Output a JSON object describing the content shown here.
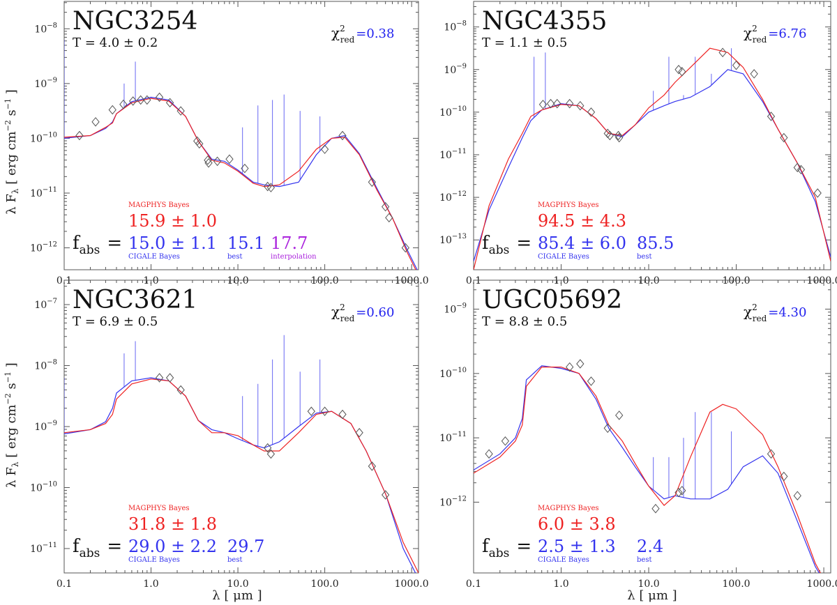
{
  "figure": {
    "xlabel": "λ [ μm ]",
    "ylabel": "λ F",
    "ylabel_sub": "λ",
    "ylabel_unit": "[ erg cm",
    "colors": {
      "magphys": "#ee2222",
      "cigale": "#3333ee",
      "interp": "#aa22dd",
      "obs": "#555555"
    },
    "x_ticks": [
      "0.1",
      "1.0",
      "10.0",
      "100.0",
      "1000.0"
    ]
  },
  "chart_data": [
    {
      "type": "line",
      "galaxy": "NGC3254",
      "t_label": "T =  4.0 ± 0.2",
      "chi2_label": "χ",
      "chi2_value": "=0.38",
      "xlim": [
        0.1,
        1200
      ],
      "ylim_log": [
        -12.4,
        -7.5
      ],
      "x_log": true,
      "y_log": true,
      "y_ticks": [
        -12,
        -11,
        -10,
        -9,
        -8
      ],
      "fabs": {
        "label": "f",
        "label_sub": "abs",
        "eq": "=",
        "magphys_title": "MAGPHYS Bayes",
        "magphys": "15.9 ± 1.0",
        "cigale": "15.0 ± 1.1",
        "cigale_title": "CIGALE Bayes",
        "best": "15.1",
        "best_title": "best",
        "interp": "17.7",
        "interp_title": "interpolation"
      },
      "observations": [
        {
          "x": 0.15,
          "y": -9.95
        },
        {
          "x": 0.23,
          "y": -9.7
        },
        {
          "x": 0.36,
          "y": -9.48
        },
        {
          "x": 0.48,
          "y": -9.38
        },
        {
          "x": 0.62,
          "y": -9.32
        },
        {
          "x": 0.76,
          "y": -9.3
        },
        {
          "x": 0.9,
          "y": -9.3
        },
        {
          "x": 1.25,
          "y": -9.25
        },
        {
          "x": 1.65,
          "y": -9.35
        },
        {
          "x": 2.2,
          "y": -9.5
        },
        {
          "x": 3.4,
          "y": -10.05
        },
        {
          "x": 3.6,
          "y": -10.1
        },
        {
          "x": 4.5,
          "y": -10.4
        },
        {
          "x": 4.6,
          "y": -10.45
        },
        {
          "x": 5.8,
          "y": -10.42
        },
        {
          "x": 8.0,
          "y": -10.38
        },
        {
          "x": 12,
          "y": -10.55
        },
        {
          "x": 22,
          "y": -10.88
        },
        {
          "x": 24,
          "y": -10.9
        },
        {
          "x": 100,
          "y": -10.2
        },
        {
          "x": 160,
          "y": -9.95
        },
        {
          "x": 350,
          "y": -10.8
        },
        {
          "x": 500,
          "y": -11.25
        },
        {
          "x": 550,
          "y": -11.45
        },
        {
          "x": 850,
          "y": -12.0
        }
      ],
      "magphys_model": [
        [
          0.1,
          -9.98
        ],
        [
          0.2,
          -9.95
        ],
        [
          0.3,
          -9.8
        ],
        [
          0.36,
          -9.72
        ],
        [
          0.4,
          -9.55
        ],
        [
          0.6,
          -9.35
        ],
        [
          1.0,
          -9.27
        ],
        [
          1.6,
          -9.32
        ],
        [
          2.5,
          -9.6
        ],
        [
          3.5,
          -10.05
        ],
        [
          5,
          -10.4
        ],
        [
          7,
          -10.45
        ],
        [
          10,
          -10.6
        ],
        [
          15,
          -10.82
        ],
        [
          20,
          -10.88
        ],
        [
          30,
          -10.85
        ],
        [
          50,
          -10.6
        ],
        [
          80,
          -10.2
        ],
        [
          120,
          -10.0
        ],
        [
          170,
          -9.98
        ],
        [
          250,
          -10.3
        ],
        [
          400,
          -10.95
        ],
        [
          600,
          -11.45
        ],
        [
          900,
          -12.1
        ],
        [
          1200,
          -12.5
        ]
      ],
      "cigale_model": [
        [
          0.1,
          -10.0
        ],
        [
          0.2,
          -9.95
        ],
        [
          0.3,
          -9.82
        ],
        [
          0.36,
          -9.7
        ],
        [
          0.4,
          -9.55
        ],
        [
          0.6,
          -9.33
        ],
        [
          1.0,
          -9.25
        ],
        [
          1.6,
          -9.3
        ],
        [
          2.5,
          -9.6
        ],
        [
          3.5,
          -10.05
        ],
        [
          5,
          -10.38
        ],
        [
          7,
          -10.42
        ],
        [
          10,
          -10.58
        ],
        [
          15,
          -10.8
        ],
        [
          20,
          -10.85
        ],
        [
          30,
          -10.88
        ],
        [
          50,
          -10.8
        ],
        [
          80,
          -10.3
        ],
        [
          120,
          -10.0
        ],
        [
          170,
          -9.95
        ],
        [
          250,
          -10.28
        ],
        [
          400,
          -10.92
        ],
        [
          600,
          -11.45
        ],
        [
          900,
          -12.05
        ],
        [
          1200,
          -12.45
        ]
      ],
      "emission_lines": [
        [
          0.1,
          -8.2
        ],
        [
          0.49,
          -9.0
        ],
        [
          0.66,
          -8.6
        ],
        [
          11.3,
          -9.8
        ],
        [
          17,
          -9.4
        ],
        [
          25,
          -9.3
        ],
        [
          34,
          -9.2
        ],
        [
          52,
          -9.5
        ],
        [
          88,
          -9.6
        ]
      ]
    },
    {
      "type": "line",
      "galaxy": "NGC4355",
      "t_label": "T =  1.1 ± 0.5",
      "chi2_label": "χ",
      "chi2_value": "=6.76",
      "xlim": [
        0.1,
        1200
      ],
      "ylim_log": [
        -13.7,
        -7.4
      ],
      "x_log": true,
      "y_log": true,
      "y_ticks": [
        -13,
        -12,
        -11,
        -10,
        -9,
        -8
      ],
      "fabs": {
        "label": "f",
        "label_sub": "abs",
        "eq": "=",
        "magphys_title": "MAGPHYS Bayes",
        "magphys": "94.5 ± 4.3",
        "cigale": "85.4 ± 6.0",
        "cigale_title": "CIGALE Bayes",
        "best": "85.5",
        "best_title": "best",
        "interp": "",
        "interp_title": ""
      },
      "observations": [
        {
          "x": 0.62,
          "y": -9.82
        },
        {
          "x": 0.76,
          "y": -9.8
        },
        {
          "x": 0.9,
          "y": -9.8
        },
        {
          "x": 1.25,
          "y": -9.8
        },
        {
          "x": 1.65,
          "y": -9.85
        },
        {
          "x": 2.2,
          "y": -10.0
        },
        {
          "x": 3.4,
          "y": -10.5
        },
        {
          "x": 3.6,
          "y": -10.55
        },
        {
          "x": 4.5,
          "y": -10.55
        },
        {
          "x": 4.6,
          "y": -10.6
        },
        {
          "x": 22,
          "y": -9.0
        },
        {
          "x": 24,
          "y": -9.05
        },
        {
          "x": 70,
          "y": -8.6
        },
        {
          "x": 100,
          "y": -8.9
        },
        {
          "x": 160,
          "y": -9.1
        },
        {
          "x": 250,
          "y": -10.1
        },
        {
          "x": 350,
          "y": -10.6
        },
        {
          "x": 500,
          "y": -11.3
        },
        {
          "x": 550,
          "y": -11.35
        },
        {
          "x": 850,
          "y": -11.9
        }
      ],
      "magphys_model": [
        [
          0.1,
          -13.7
        ],
        [
          0.15,
          -12.2
        ],
        [
          0.25,
          -11.1
        ],
        [
          0.36,
          -10.5
        ],
        [
          0.45,
          -10.1
        ],
        [
          0.6,
          -9.95
        ],
        [
          1.0,
          -9.82
        ],
        [
          1.6,
          -9.85
        ],
        [
          2.5,
          -10.15
        ],
        [
          3.5,
          -10.5
        ],
        [
          5,
          -10.55
        ],
        [
          7,
          -10.3
        ],
        [
          10,
          -9.9
        ],
        [
          15,
          -9.6
        ],
        [
          20,
          -9.3
        ],
        [
          30,
          -8.95
        ],
        [
          50,
          -8.5
        ],
        [
          80,
          -8.6
        ],
        [
          120,
          -8.95
        ],
        [
          200,
          -9.7
        ],
        [
          300,
          -10.4
        ],
        [
          500,
          -11.2
        ],
        [
          800,
          -12.0
        ],
        [
          1200,
          -13.5
        ]
      ],
      "cigale_model": [
        [
          0.1,
          -13.5
        ],
        [
          0.15,
          -12.3
        ],
        [
          0.25,
          -11.3
        ],
        [
          0.36,
          -10.6
        ],
        [
          0.45,
          -10.2
        ],
        [
          0.6,
          -9.95
        ],
        [
          1.0,
          -9.8
        ],
        [
          1.6,
          -9.85
        ],
        [
          2.5,
          -10.15
        ],
        [
          3.5,
          -10.5
        ],
        [
          5,
          -10.58
        ],
        [
          7,
          -10.3
        ],
        [
          10,
          -10.0
        ],
        [
          15,
          -9.85
        ],
        [
          20,
          -9.75
        ],
        [
          30,
          -9.65
        ],
        [
          50,
          -9.4
        ],
        [
          80,
          -9.0
        ],
        [
          120,
          -9.1
        ],
        [
          200,
          -9.75
        ],
        [
          300,
          -10.4
        ],
        [
          500,
          -11.2
        ],
        [
          800,
          -12.1
        ],
        [
          1200,
          -13.4
        ]
      ],
      "emission_lines": [
        [
          0.49,
          -8.7
        ],
        [
          0.66,
          -8.6
        ],
        [
          11.3,
          -9.5
        ],
        [
          17,
          -8.7
        ],
        [
          25,
          -9.6
        ],
        [
          34,
          -8.7
        ],
        [
          52,
          -9.1
        ],
        [
          88,
          -8.5
        ]
      ]
    },
    {
      "type": "line",
      "galaxy": "NGC3621",
      "t_label": "T =  6.9 ± 0.5",
      "chi2_label": "χ",
      "chi2_value": "=0.60",
      "xlim": [
        0.1,
        1200
      ],
      "ylim_log": [
        -11.4,
        -6.6
      ],
      "x_log": true,
      "y_log": true,
      "y_ticks": [
        -11,
        -10,
        -9,
        -8,
        -7
      ],
      "fabs": {
        "label": "f",
        "label_sub": "abs",
        "eq": "=",
        "magphys_title": "MAGPHYS Bayes",
        "magphys": "31.8 ± 1.8",
        "cigale": "29.0 ± 2.2",
        "cigale_title": "CIGALE Bayes",
        "best": "29.7",
        "best_title": "best",
        "interp": "",
        "interp_title": ""
      },
      "observations": [
        {
          "x": 1.25,
          "y": -8.2
        },
        {
          "x": 1.65,
          "y": -8.2
        },
        {
          "x": 2.2,
          "y": -8.4
        },
        {
          "x": 22,
          "y": -9.35
        },
        {
          "x": 24,
          "y": -9.45
        },
        {
          "x": 70,
          "y": -8.75
        },
        {
          "x": 100,
          "y": -8.75
        },
        {
          "x": 160,
          "y": -8.8
        },
        {
          "x": 250,
          "y": -9.1
        },
        {
          "x": 350,
          "y": -9.65
        },
        {
          "x": 500,
          "y": -10.12
        }
      ],
      "magphys_model": [
        [
          0.1,
          -9.1
        ],
        [
          0.2,
          -9.05
        ],
        [
          0.3,
          -8.95
        ],
        [
          0.36,
          -8.8
        ],
        [
          0.4,
          -8.55
        ],
        [
          0.6,
          -8.3
        ],
        [
          1.0,
          -8.22
        ],
        [
          1.6,
          -8.25
        ],
        [
          2.5,
          -8.5
        ],
        [
          3.5,
          -8.9
        ],
        [
          5,
          -9.1
        ],
        [
          7,
          -9.1
        ],
        [
          10,
          -9.15
        ],
        [
          15,
          -9.3
        ],
        [
          20,
          -9.4
        ],
        [
          30,
          -9.4
        ],
        [
          50,
          -9.1
        ],
        [
          80,
          -8.8
        ],
        [
          120,
          -8.75
        ],
        [
          200,
          -8.95
        ],
        [
          300,
          -9.4
        ],
        [
          500,
          -10.1
        ],
        [
          800,
          -10.9
        ],
        [
          1200,
          -11.4
        ]
      ],
      "cigale_model": [
        [
          0.1,
          -9.12
        ],
        [
          0.2,
          -9.05
        ],
        [
          0.3,
          -8.92
        ],
        [
          0.36,
          -8.7
        ],
        [
          0.4,
          -8.45
        ],
        [
          0.6,
          -8.25
        ],
        [
          1.0,
          -8.2
        ],
        [
          1.6,
          -8.25
        ],
        [
          2.5,
          -8.5
        ],
        [
          3.5,
          -8.9
        ],
        [
          5,
          -9.05
        ],
        [
          7,
          -9.1
        ],
        [
          10,
          -9.2
        ],
        [
          15,
          -9.3
        ],
        [
          20,
          -9.35
        ],
        [
          30,
          -9.25
        ],
        [
          50,
          -9.0
        ],
        [
          80,
          -8.78
        ],
        [
          120,
          -8.75
        ],
        [
          200,
          -8.95
        ],
        [
          300,
          -9.4
        ],
        [
          500,
          -10.1
        ],
        [
          800,
          -11.0
        ],
        [
          1200,
          -11.5
        ]
      ],
      "emission_lines": [
        [
          0.1,
          -8.2
        ],
        [
          0.49,
          -7.8
        ],
        [
          0.66,
          -7.6
        ],
        [
          11.3,
          -8.5
        ],
        [
          17,
          -8.3
        ],
        [
          25,
          -7.9
        ],
        [
          34,
          -7.5
        ],
        [
          52,
          -8.1
        ],
        [
          88,
          -7.9
        ]
      ]
    },
    {
      "type": "line",
      "galaxy": "UGC05692",
      "t_label": "T =  8.8 ± 0.5",
      "chi2_label": "χ",
      "chi2_value": "=4.30",
      "xlim": [
        0.1,
        1200
      ],
      "ylim_log": [
        -13.1,
        -8.55
      ],
      "x_log": true,
      "y_log": true,
      "y_ticks": [
        -12,
        -11,
        -10,
        -9
      ],
      "fabs": {
        "label": "f",
        "label_sub": "abs",
        "eq": "=",
        "magphys_title": "MAGPHYS Bayes",
        "magphys": "6.0 ± 3.8",
        "cigale": "2.5 ± 1.3",
        "cigale_title": "CIGALE Bayes",
        "best": "2.4",
        "best_title": "best",
        "interp": "",
        "interp_title": ""
      },
      "observations": [
        {
          "x": 0.15,
          "y": -11.25
        },
        {
          "x": 0.23,
          "y": -11.05
        },
        {
          "x": 1.25,
          "y": -9.9
        },
        {
          "x": 1.65,
          "y": -9.85
        },
        {
          "x": 2.2,
          "y": -10.12
        },
        {
          "x": 3.4,
          "y": -10.85
        },
        {
          "x": 4.6,
          "y": -10.65
        },
        {
          "x": 12,
          "y": -12.1
        },
        {
          "x": 22,
          "y": -11.85
        },
        {
          "x": 24,
          "y": -11.82
        },
        {
          "x": 250,
          "y": -11.25
        },
        {
          "x": 350,
          "y": -11.6
        },
        {
          "x": 500,
          "y": -11.9
        }
      ],
      "magphys_model": [
        [
          0.1,
          -11.55
        ],
        [
          0.2,
          -11.3
        ],
        [
          0.3,
          -11.05
        ],
        [
          0.36,
          -10.8
        ],
        [
          0.4,
          -10.2
        ],
        [
          0.6,
          -9.9
        ],
        [
          1.0,
          -9.9
        ],
        [
          1.6,
          -10.0
        ],
        [
          2.5,
          -10.35
        ],
        [
          3.5,
          -10.8
        ],
        [
          5,
          -11.05
        ],
        [
          7,
          -11.4
        ],
        [
          10,
          -11.75
        ],
        [
          15,
          -12.05
        ],
        [
          20,
          -11.9
        ],
        [
          30,
          -11.3
        ],
        [
          50,
          -10.6
        ],
        [
          70,
          -10.48
        ],
        [
          100,
          -10.55
        ],
        [
          200,
          -10.95
        ],
        [
          300,
          -11.45
        ],
        [
          500,
          -12.2
        ],
        [
          800,
          -12.95
        ],
        [
          1200,
          -13.4
        ]
      ],
      "cigale_model": [
        [
          0.1,
          -11.5
        ],
        [
          0.2,
          -11.25
        ],
        [
          0.3,
          -11.0
        ],
        [
          0.36,
          -10.7
        ],
        [
          0.4,
          -10.1
        ],
        [
          0.6,
          -9.88
        ],
        [
          1.0,
          -9.92
        ],
        [
          1.6,
          -10.0
        ],
        [
          2.5,
          -10.4
        ],
        [
          3.5,
          -10.85
        ],
        [
          5,
          -11.15
        ],
        [
          7,
          -11.45
        ],
        [
          10,
          -11.75
        ],
        [
          15,
          -11.95
        ],
        [
          20,
          -11.9
        ],
        [
          30,
          -11.95
        ],
        [
          50,
          -11.95
        ],
        [
          80,
          -11.8
        ],
        [
          120,
          -11.45
        ],
        [
          200,
          -11.28
        ],
        [
          300,
          -11.55
        ],
        [
          500,
          -12.3
        ],
        [
          800,
          -13.0
        ],
        [
          1200,
          -13.4
        ]
      ],
      "emission_lines": [
        [
          0.49,
          -10.0
        ],
        [
          0.66,
          -9.9
        ],
        [
          11.3,
          -11.3
        ],
        [
          17,
          -11.3
        ],
        [
          25,
          -11.0
        ],
        [
          34,
          -10.6
        ],
        [
          52,
          -10.6
        ],
        [
          88,
          -10.9
        ]
      ]
    }
  ]
}
